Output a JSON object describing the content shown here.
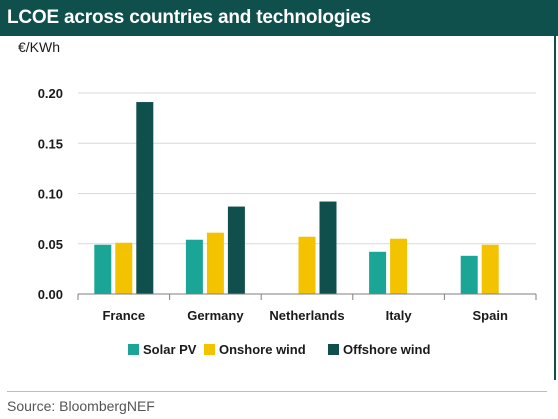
{
  "header": {
    "title": "LCOE across countries and technologies"
  },
  "footer": {
    "source": "Source: BloombergNEF"
  },
  "colors": {
    "header_bg": "#0f4f4c",
    "solar": "#1aa597",
    "onshore": "#f3c300",
    "offshore": "#0f4f4c"
  },
  "chart_data": {
    "type": "bar",
    "ylabel": "€/KWh",
    "xlabel": "",
    "ylim": [
      0,
      0.2
    ],
    "yticks": [
      0.0,
      0.05,
      0.1,
      0.15,
      0.2
    ],
    "ytick_labels": [
      "0.00",
      "0.05",
      "0.10",
      "0.15",
      "0.20"
    ],
    "grid": true,
    "legend": "bottom",
    "categories": [
      "France",
      "Germany",
      "Netherlands",
      "Italy",
      "Spain"
    ],
    "series": [
      {
        "name": "Solar PV",
        "color": "#1aa597",
        "values": [
          0.049,
          0.054,
          null,
          0.042,
          0.038
        ]
      },
      {
        "name": "Onshore wind",
        "color": "#f3c300",
        "values": [
          0.051,
          0.061,
          0.057,
          0.055,
          0.049
        ]
      },
      {
        "name": "Offshore wind",
        "color": "#0f4f4c",
        "values": [
          0.191,
          0.087,
          0.092,
          null,
          null
        ]
      }
    ]
  }
}
